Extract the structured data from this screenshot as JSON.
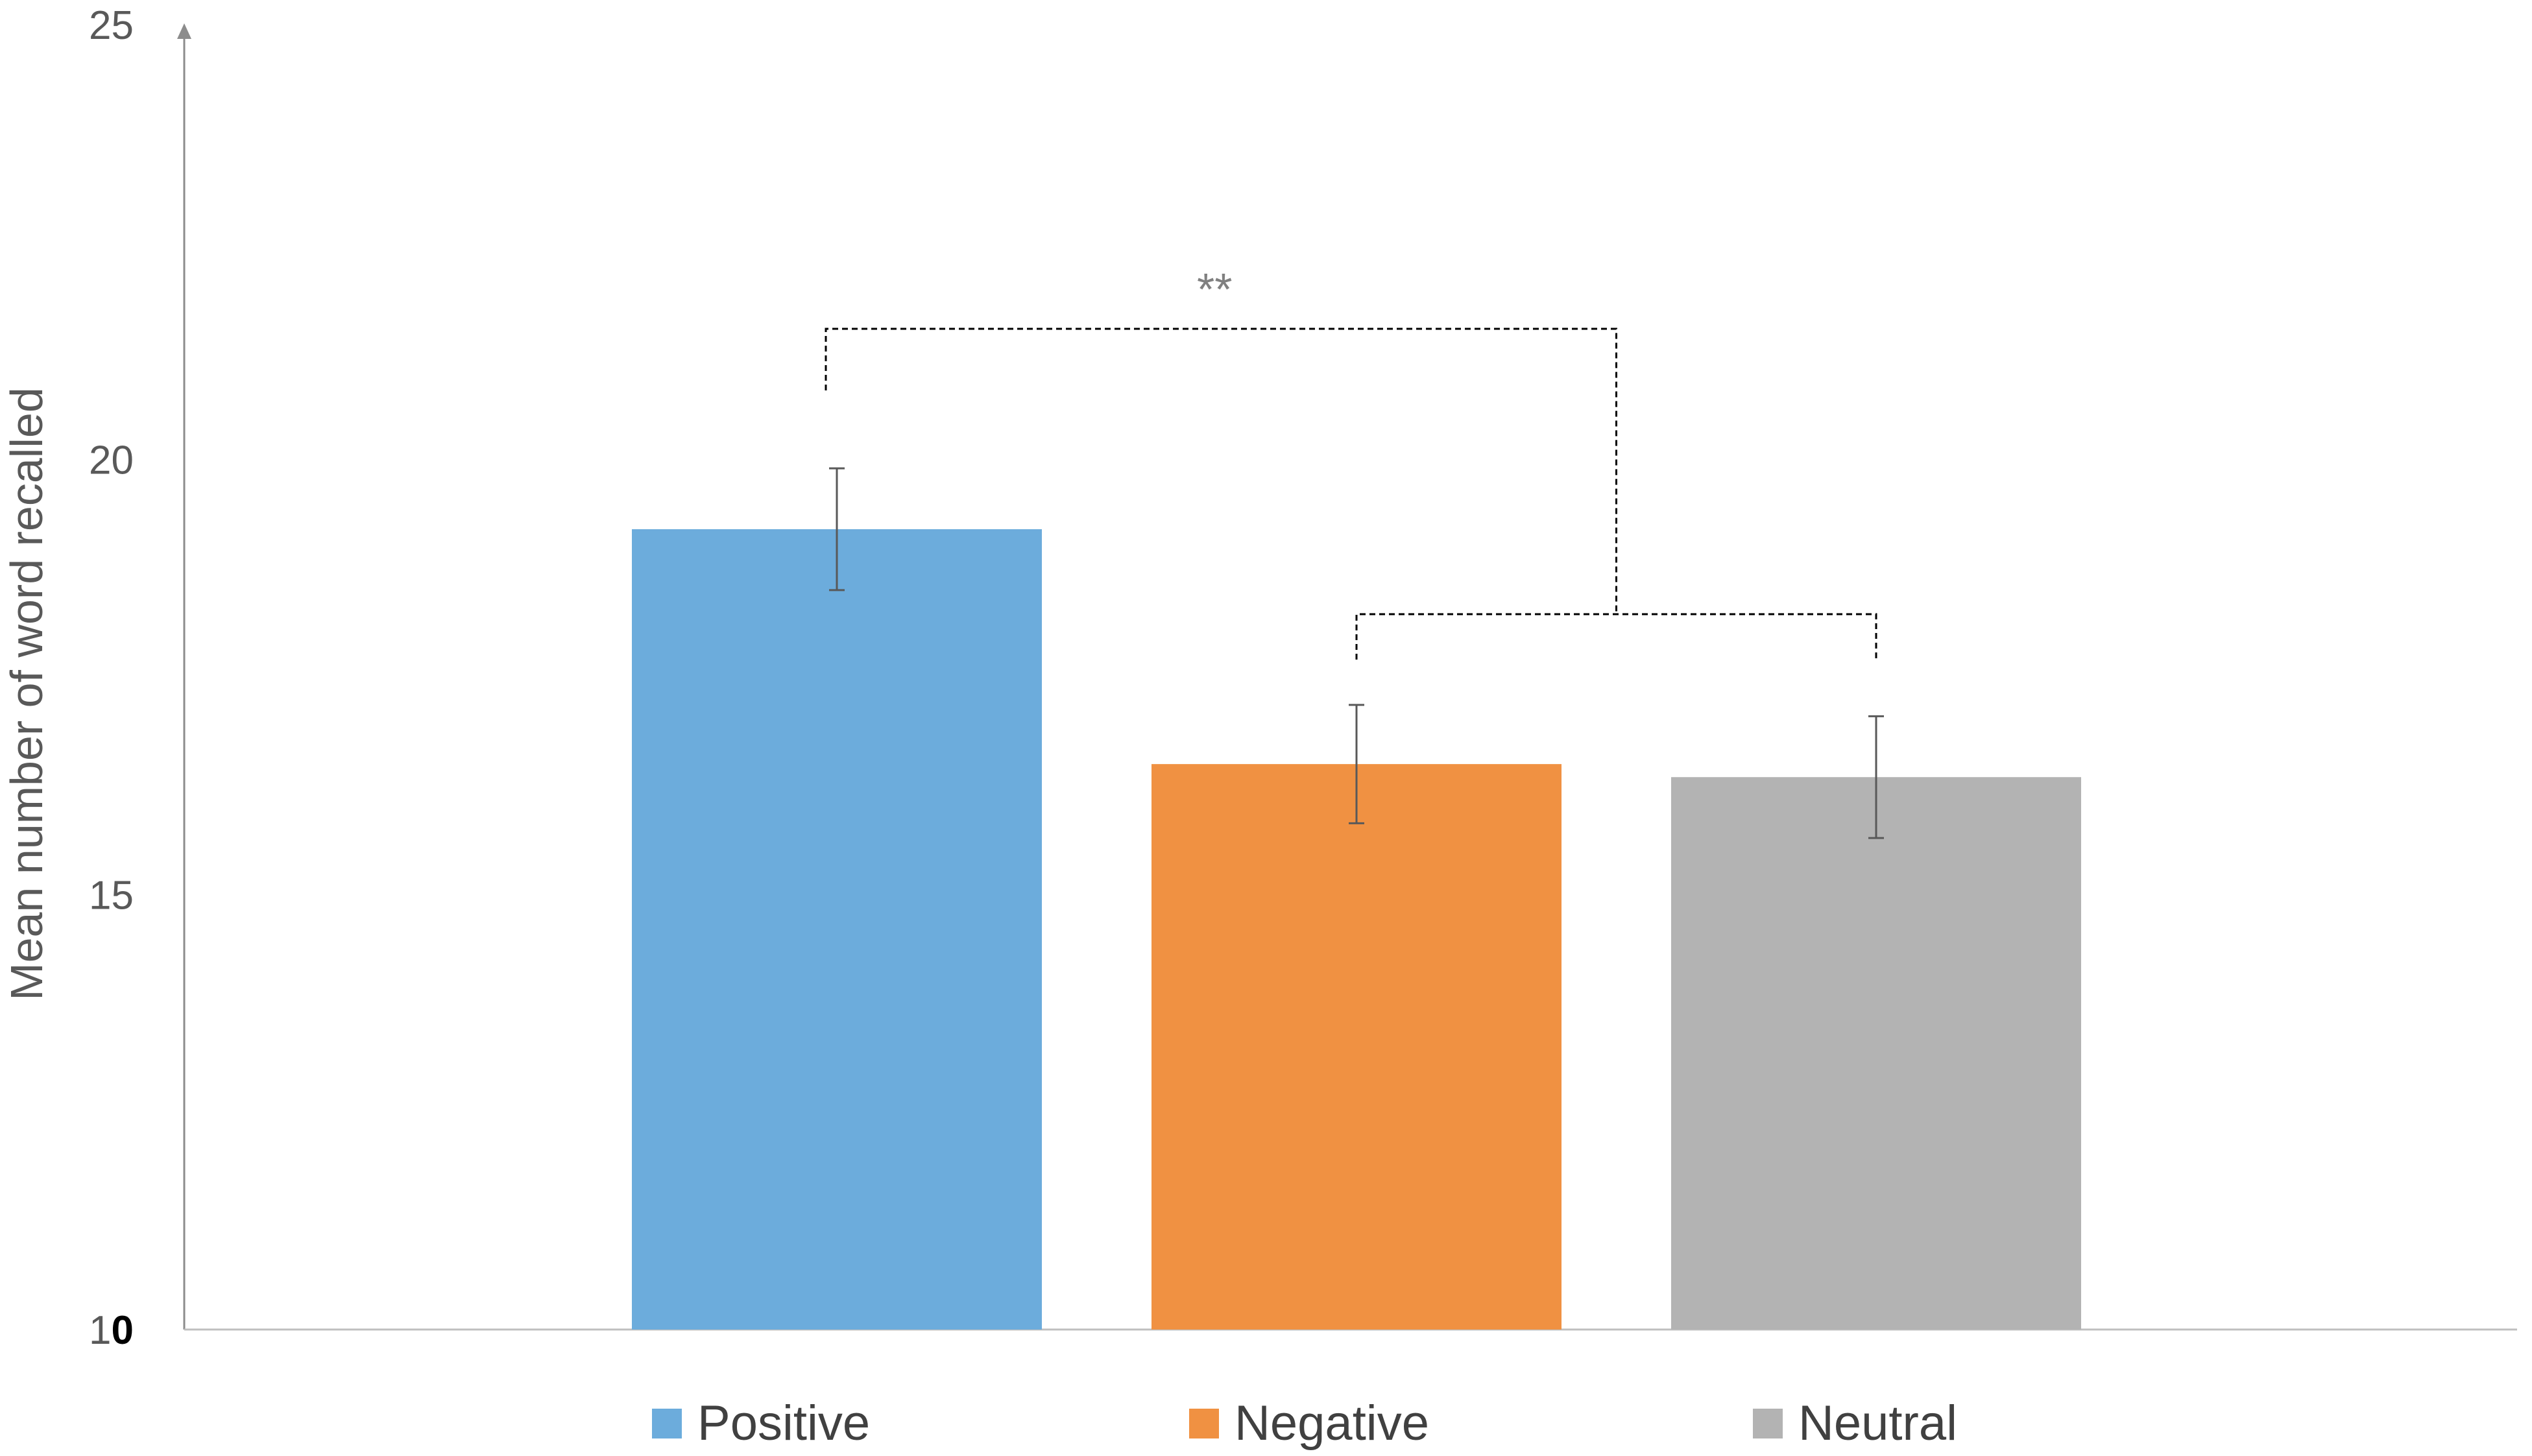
{
  "chart_data": {
    "type": "bar",
    "title": "",
    "xlabel": "",
    "ylabel": "Mean number of word recalled",
    "ylim": [
      10,
      25
    ],
    "yticks": [
      "10",
      "15",
      "20",
      "25"
    ],
    "ytick_bottom_parts": [
      "1",
      "0"
    ],
    "grid": false,
    "legend_position": "bottom",
    "categories": [
      "Positive",
      "Negative",
      "Neutral"
    ],
    "values": [
      19.2,
      16.5,
      16.35
    ],
    "errors": [
      0.7,
      0.68,
      0.7
    ],
    "colors": [
      "#6CACDC",
      "#F09142",
      "#B3B3B3"
    ],
    "legend": [
      "Positive",
      "Negative",
      "Neutral"
    ],
    "significance": {
      "label": "**",
      "left_category": "Positive",
      "right_categories": [
        "Negative",
        "Neutral"
      ]
    }
  }
}
